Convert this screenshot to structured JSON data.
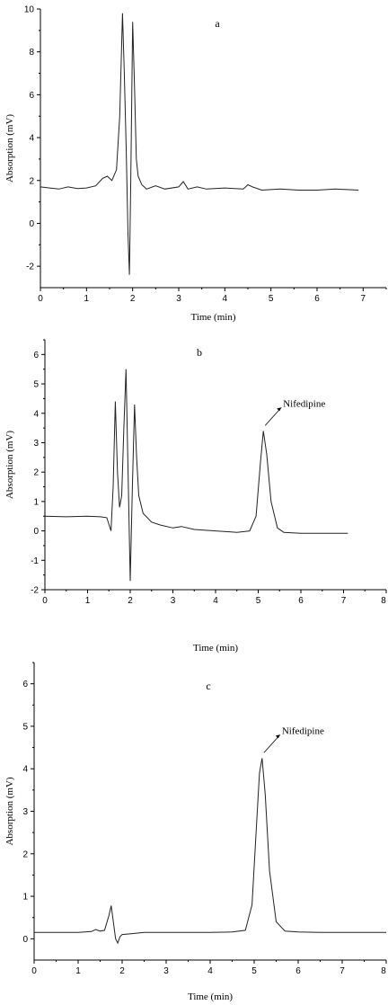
{
  "chart_data": [
    {
      "type": "line",
      "panel_label": "a",
      "xlabel": "Time (min)",
      "ylabel": "Absorption (mV)",
      "xlim": [
        0,
        7.5
      ],
      "ylim": [
        -3,
        10
      ],
      "xticks": [
        0,
        1,
        2,
        3,
        4,
        5,
        6,
        7
      ],
      "yticks": [
        -2,
        0,
        2,
        4,
        6,
        8,
        10
      ],
      "grid": false,
      "series": [
        {
          "x": [
            0.0,
            0.2,
            0.4,
            0.6,
            0.8,
            1.0,
            1.2,
            1.35,
            1.45,
            1.55,
            1.65,
            1.72,
            1.78,
            1.82,
            1.86,
            1.9,
            1.93,
            1.96,
            2.0,
            2.04,
            2.08,
            2.12,
            2.2,
            2.3,
            2.5,
            2.7,
            3.0,
            3.1,
            3.2,
            3.4,
            3.6,
            4.0,
            4.4,
            4.5,
            4.6,
            4.8,
            5.2,
            5.6,
            6.0,
            6.4,
            6.9
          ],
          "y": [
            1.7,
            1.65,
            1.6,
            1.7,
            1.62,
            1.65,
            1.75,
            2.1,
            2.2,
            2.0,
            2.5,
            5.0,
            9.8,
            7.0,
            3.5,
            -0.5,
            -2.4,
            2.0,
            9.4,
            6.5,
            3.0,
            2.2,
            1.8,
            1.6,
            1.75,
            1.6,
            1.7,
            1.95,
            1.6,
            1.7,
            1.6,
            1.65,
            1.6,
            1.8,
            1.7,
            1.55,
            1.6,
            1.55,
            1.55,
            1.6,
            1.55
          ]
        }
      ]
    },
    {
      "type": "line",
      "panel_label": "b",
      "xlabel": "Time (min)",
      "ylabel": "Absorption (mV)",
      "xlim": [
        0,
        8
      ],
      "ylim": [
        -2,
        6.5
      ],
      "xticks": [
        0,
        1,
        2,
        3,
        4,
        5,
        6,
        7,
        8
      ],
      "yticks": [
        -2,
        -1,
        0,
        1,
        2,
        3,
        4,
        5,
        6
      ],
      "grid": false,
      "annotation": {
        "text": "Nifedipine",
        "x": 5.12,
        "y": 3.4
      },
      "series": [
        {
          "x": [
            0.0,
            0.5,
            1.0,
            1.3,
            1.45,
            1.55,
            1.6,
            1.65,
            1.7,
            1.75,
            1.8,
            1.85,
            1.9,
            1.95,
            2.0,
            2.05,
            2.1,
            2.15,
            2.2,
            2.3,
            2.5,
            2.7,
            3.0,
            3.2,
            3.5,
            4.0,
            4.5,
            4.8,
            4.95,
            5.05,
            5.12,
            5.2,
            5.3,
            5.45,
            5.6,
            6.0,
            6.5,
            7.1
          ],
          "y": [
            0.5,
            0.48,
            0.5,
            0.48,
            0.45,
            0.0,
            1.5,
            4.4,
            2.0,
            0.8,
            1.2,
            3.5,
            5.5,
            2.0,
            -1.7,
            1.5,
            4.3,
            2.5,
            1.2,
            0.6,
            0.3,
            0.2,
            0.1,
            0.15,
            0.05,
            0.0,
            -0.05,
            0.0,
            0.5,
            2.3,
            3.4,
            2.6,
            1.0,
            0.1,
            -0.05,
            -0.08,
            -0.08,
            -0.08
          ]
        }
      ]
    },
    {
      "type": "line",
      "panel_label": "c",
      "xlabel": "Time (min)",
      "ylabel": "Absorption (mV)",
      "xlim": [
        0,
        8
      ],
      "ylim": [
        -0.5,
        6.5
      ],
      "xticks": [
        0,
        1,
        2,
        3,
        4,
        5,
        6,
        7,
        8
      ],
      "yticks": [
        0,
        1,
        2,
        3,
        4,
        5,
        6
      ],
      "grid": false,
      "annotation": {
        "text": "Nifedipine",
        "x": 5.18,
        "y": 4.25
      },
      "series": [
        {
          "x": [
            0.0,
            0.5,
            1.0,
            1.3,
            1.4,
            1.5,
            1.6,
            1.7,
            1.75,
            1.8,
            1.85,
            1.9,
            1.95,
            2.0,
            2.2,
            2.5,
            3.0,
            3.5,
            4.0,
            4.5,
            4.8,
            4.95,
            5.05,
            5.12,
            5.18,
            5.25,
            5.35,
            5.5,
            5.7,
            6.0,
            6.5,
            7.0,
            7.5,
            8.0
          ],
          "y": [
            0.15,
            0.15,
            0.15,
            0.17,
            0.22,
            0.18,
            0.2,
            0.55,
            0.78,
            0.4,
            0.0,
            -0.1,
            0.05,
            0.1,
            0.12,
            0.15,
            0.15,
            0.15,
            0.15,
            0.16,
            0.2,
            0.8,
            2.6,
            3.9,
            4.25,
            3.4,
            1.6,
            0.4,
            0.18,
            0.16,
            0.15,
            0.15,
            0.15,
            0.15
          ]
        }
      ]
    }
  ]
}
